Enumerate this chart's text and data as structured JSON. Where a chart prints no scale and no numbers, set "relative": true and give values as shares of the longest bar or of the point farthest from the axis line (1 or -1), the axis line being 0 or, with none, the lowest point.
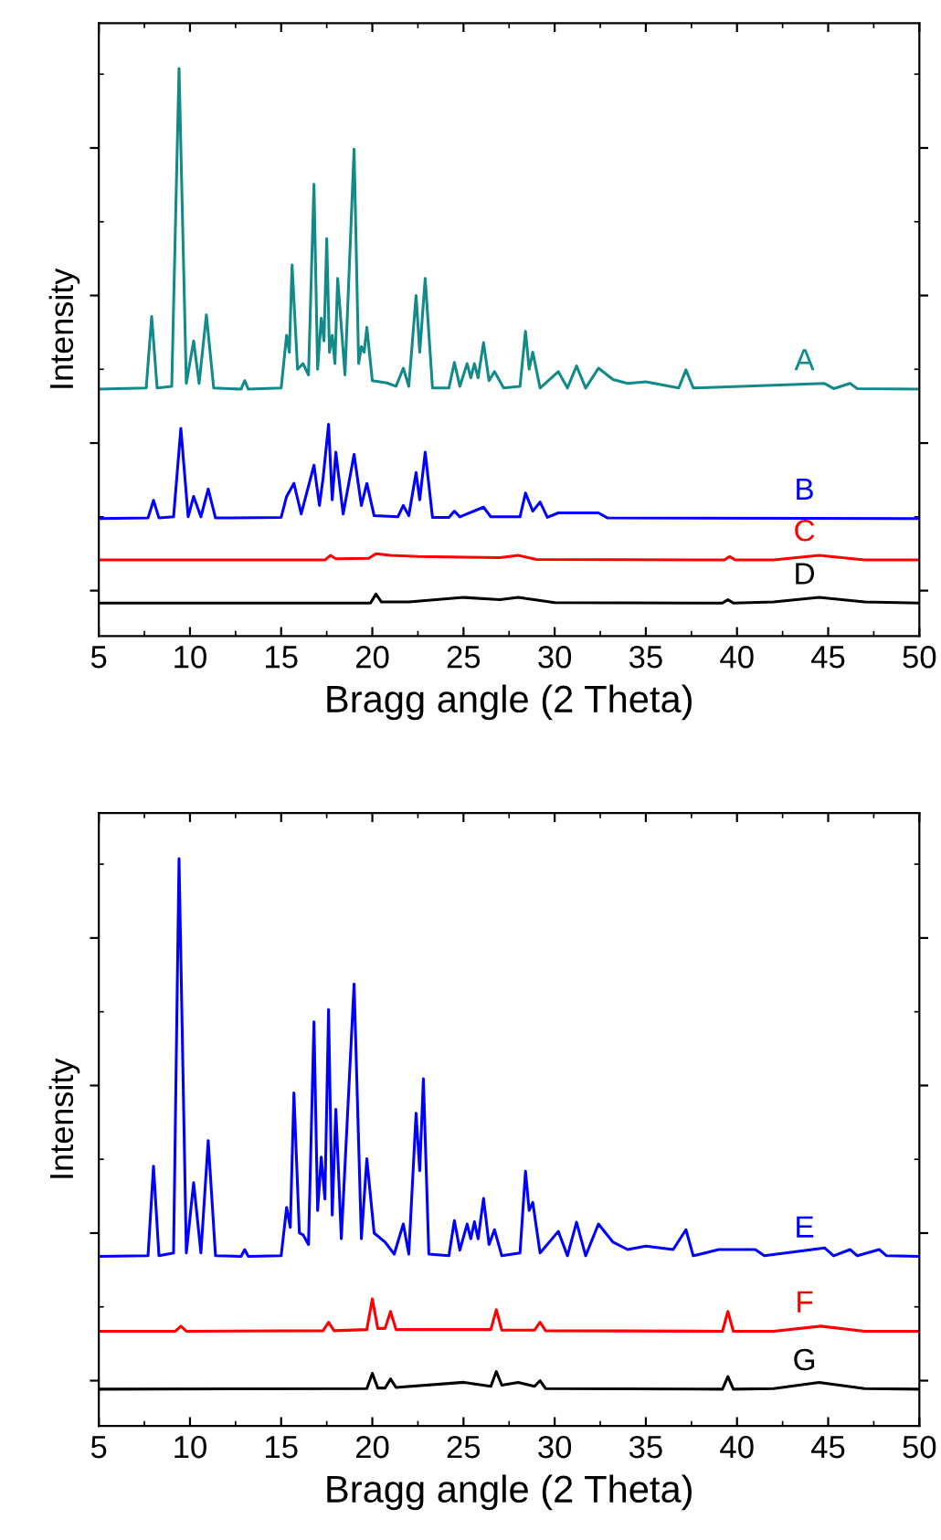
{
  "chart_data": [
    {
      "type": "line",
      "relative": true,
      "xlabel": "Bragg angle (2 Theta)",
      "ylabel": "Intensity",
      "xlim": [
        5,
        50
      ],
      "xticks": [
        5,
        10,
        15,
        20,
        25,
        30,
        35,
        40,
        45,
        50
      ],
      "series": [
        {
          "name": "A",
          "color": "#138a8a",
          "x": [
            5,
            7.6,
            7.9,
            8.2,
            9.0,
            9.4,
            9.8,
            10.2,
            10.5,
            10.9,
            11.3,
            12.8,
            13.0,
            13.2,
            15.0,
            15.3,
            15.45,
            15.6,
            15.9,
            16.2,
            16.5,
            16.8,
            17.0,
            17.2,
            17.35,
            17.5,
            17.65,
            17.8,
            17.95,
            18.1,
            18.5,
            19.0,
            19.25,
            19.4,
            19.55,
            19.7,
            20.0,
            20.8,
            21.3,
            21.7,
            22.0,
            22.4,
            22.6,
            22.9,
            23.3,
            24.2,
            24.5,
            24.8,
            25.2,
            25.4,
            25.6,
            25.8,
            26.1,
            26.4,
            26.7,
            27.2,
            28.1,
            28.4,
            28.6,
            28.8,
            29.2,
            30.2,
            30.7,
            31.2,
            31.7,
            32.4,
            33.2,
            34.0,
            35.0,
            36.8,
            37.2,
            37.6,
            44.8,
            45.3,
            46.2,
            46.6,
            50
          ],
          "values": [
            0.435,
            0.437,
            0.563,
            0.437,
            0.44,
            1.0,
            0.445,
            0.52,
            0.445,
            0.566,
            0.437,
            0.435,
            0.45,
            0.435,
            0.437,
            0.53,
            0.5,
            0.654,
            0.47,
            0.48,
            0.46,
            0.796,
            0.47,
            0.56,
            0.52,
            0.7,
            0.5,
            0.53,
            0.48,
            0.63,
            0.46,
            0.858,
            0.48,
            0.51,
            0.5,
            0.544,
            0.45,
            0.446,
            0.44,
            0.472,
            0.44,
            0.6,
            0.5,
            0.63,
            0.437,
            0.437,
            0.482,
            0.44,
            0.48,
            0.455,
            0.48,
            0.455,
            0.517,
            0.45,
            0.466,
            0.437,
            0.44,
            0.537,
            0.47,
            0.5,
            0.437,
            0.466,
            0.437,
            0.476,
            0.437,
            0.472,
            0.452,
            0.445,
            0.448,
            0.437,
            0.469,
            0.437,
            0.445,
            0.436,
            0.445,
            0.436,
            0.435
          ]
        },
        {
          "name": "B",
          "color": "#0000ff",
          "x": [
            5,
            7.7,
            8.0,
            8.3,
            9.1,
            9.5,
            9.9,
            10.2,
            10.6,
            11.0,
            11.4,
            15.0,
            15.3,
            15.7,
            16.1,
            16.8,
            17.1,
            17.3,
            17.6,
            17.8,
            18.0,
            18.4,
            19.0,
            19.4,
            19.7,
            20.1,
            21.4,
            21.7,
            22.0,
            22.4,
            22.6,
            22.9,
            23.3,
            24.2,
            24.5,
            24.8,
            26.1,
            26.5,
            28.1,
            28.4,
            28.8,
            29.2,
            29.6,
            30.2,
            31.2,
            32.4,
            32.9,
            50
          ],
          "values": [
            0.207,
            0.208,
            0.239,
            0.208,
            0.21,
            0.366,
            0.21,
            0.246,
            0.21,
            0.259,
            0.208,
            0.209,
            0.246,
            0.269,
            0.215,
            0.301,
            0.23,
            0.278,
            0.373,
            0.24,
            0.324,
            0.215,
            0.32,
            0.23,
            0.269,
            0.212,
            0.21,
            0.23,
            0.212,
            0.288,
            0.24,
            0.324,
            0.209,
            0.209,
            0.22,
            0.21,
            0.227,
            0.21,
            0.21,
            0.252,
            0.22,
            0.236,
            0.209,
            0.217,
            0.217,
            0.217,
            0.208,
            0.207
          ]
        },
        {
          "name": "C",
          "color": "#ff0000",
          "x": [
            5,
            17.4,
            17.7,
            18.0,
            19.8,
            20.2,
            21.0,
            22.5,
            27.0,
            28.0,
            29.0,
            39.3,
            39.6,
            39.9,
            42.0,
            44.5,
            47.0,
            50
          ],
          "values": [
            0.134,
            0.134,
            0.142,
            0.136,
            0.137,
            0.145,
            0.142,
            0.14,
            0.138,
            0.142,
            0.135,
            0.134,
            0.14,
            0.134,
            0.134,
            0.142,
            0.134,
            0.134
          ]
        },
        {
          "name": "D",
          "color": "#000000",
          "x": [
            5,
            19.9,
            20.2,
            20.5,
            22.0,
            25.0,
            27.0,
            28.0,
            30.0,
            39.2,
            39.5,
            39.8,
            42.0,
            44.5,
            47.0,
            50
          ],
          "values": [
            0.058,
            0.058,
            0.074,
            0.06,
            0.06,
            0.068,
            0.064,
            0.068,
            0.059,
            0.058,
            0.064,
            0.058,
            0.06,
            0.068,
            0.06,
            0.058
          ]
        }
      ]
    },
    {
      "type": "line",
      "relative": true,
      "xlabel": "Bragg angle (2 Theta)",
      "ylabel": "Intensity",
      "xlim": [
        5,
        50
      ],
      "xticks": [
        5,
        10,
        15,
        20,
        25,
        30,
        35,
        40,
        45,
        50
      ],
      "series": [
        {
          "name": "E",
          "color": "#0000ff",
          "x": [
            5,
            7.7,
            8.0,
            8.3,
            9.1,
            9.4,
            9.8,
            10.2,
            10.6,
            11.0,
            11.4,
            12.8,
            13.0,
            13.2,
            15.0,
            15.3,
            15.5,
            15.7,
            16.0,
            16.2,
            16.5,
            16.8,
            17.0,
            17.2,
            17.4,
            17.6,
            17.8,
            18.0,
            18.3,
            19.0,
            19.4,
            19.7,
            20.1,
            20.7,
            21.2,
            21.7,
            22.0,
            22.4,
            22.6,
            22.8,
            23.1,
            24.2,
            24.5,
            24.8,
            25.2,
            25.4,
            25.6,
            25.8,
            26.1,
            26.4,
            26.7,
            27.1,
            28.1,
            28.4,
            28.6,
            28.8,
            29.2,
            30.2,
            30.7,
            31.2,
            31.7,
            32.4,
            33.2,
            34.0,
            35.0,
            36.5,
            37.2,
            37.6,
            39.0,
            41.0,
            41.5,
            44.8,
            45.3,
            46.2,
            46.6,
            47.8,
            48.2,
            50
          ],
          "values": [
            0.299,
            0.3,
            0.458,
            0.3,
            0.305,
            1.0,
            0.305,
            0.429,
            0.305,
            0.503,
            0.3,
            0.299,
            0.311,
            0.299,
            0.3,
            0.385,
            0.35,
            0.587,
            0.34,
            0.337,
            0.32,
            0.712,
            0.38,
            0.474,
            0.4,
            0.734,
            0.372,
            0.558,
            0.33,
            0.779,
            0.33,
            0.471,
            0.34,
            0.324,
            0.303,
            0.356,
            0.303,
            0.551,
            0.45,
            0.612,
            0.303,
            0.3,
            0.362,
            0.31,
            0.356,
            0.33,
            0.36,
            0.33,
            0.401,
            0.32,
            0.346,
            0.3,
            0.305,
            0.449,
            0.38,
            0.394,
            0.305,
            0.343,
            0.3,
            0.359,
            0.3,
            0.356,
            0.324,
            0.311,
            0.317,
            0.311,
            0.346,
            0.3,
            0.311,
            0.311,
            0.3,
            0.314,
            0.3,
            0.311,
            0.3,
            0.311,
            0.3,
            0.299
          ]
        },
        {
          "name": "F",
          "color": "#ff0000",
          "x": [
            5,
            9.2,
            9.5,
            9.8,
            17.3,
            17.6,
            17.9,
            19.7,
            20.0,
            20.3,
            20.7,
            21.0,
            21.3,
            26.5,
            26.8,
            27.1,
            28.9,
            29.2,
            29.5,
            39.2,
            39.5,
            39.8,
            42.0,
            44.6,
            47.0,
            50
          ],
          "values": [
            0.167,
            0.167,
            0.176,
            0.167,
            0.168,
            0.183,
            0.168,
            0.17,
            0.224,
            0.172,
            0.172,
            0.202,
            0.17,
            0.17,
            0.205,
            0.169,
            0.169,
            0.183,
            0.168,
            0.167,
            0.202,
            0.167,
            0.167,
            0.176,
            0.167,
            0.167
          ]
        },
        {
          "name": "G",
          "color": "#000000",
          "x": [
            5,
            19.7,
            20.0,
            20.3,
            20.7,
            21.0,
            21.3,
            25.0,
            26.5,
            26.8,
            27.1,
            28.0,
            28.9,
            29.2,
            29.5,
            39.2,
            39.5,
            39.8,
            42.0,
            44.5,
            47.0,
            50
          ],
          "values": [
            0.065,
            0.066,
            0.093,
            0.067,
            0.067,
            0.083,
            0.068,
            0.077,
            0.07,
            0.096,
            0.072,
            0.077,
            0.07,
            0.08,
            0.066,
            0.065,
            0.087,
            0.065,
            0.066,
            0.077,
            0.066,
            0.065
          ]
        }
      ]
    }
  ]
}
